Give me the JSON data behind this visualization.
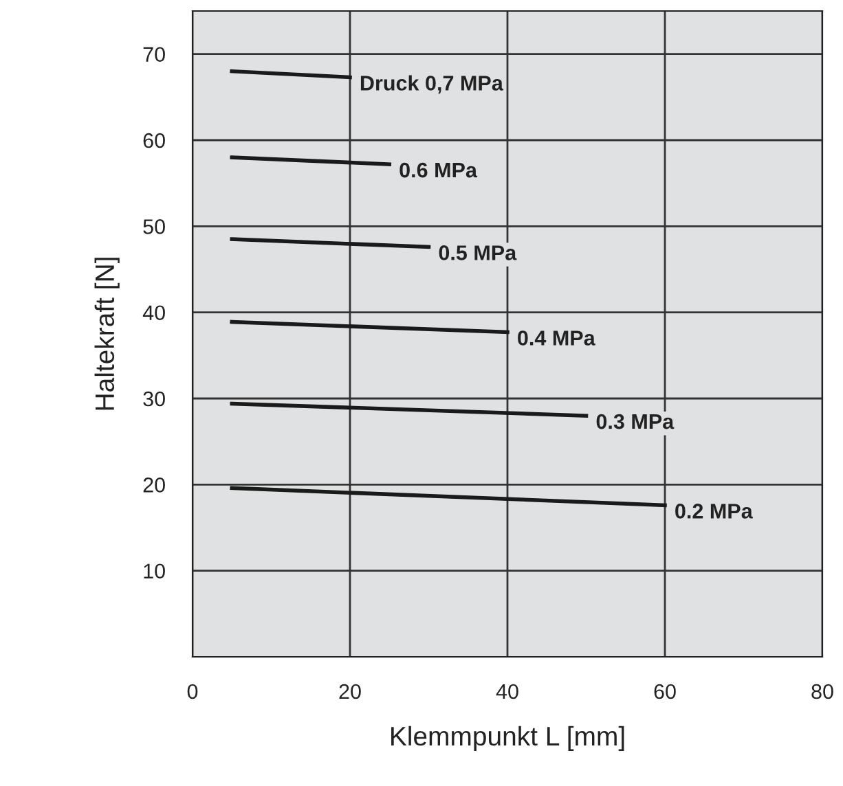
{
  "chart_data": {
    "type": "line",
    "xlabel": "Klemmpunkt L [mm]",
    "ylabel": "Haltekraft [N]",
    "xlim": [
      0,
      80
    ],
    "ylim": [
      0,
      75
    ],
    "xticks": [
      0,
      20,
      40,
      60,
      80
    ],
    "yticks": [
      10,
      20,
      30,
      40,
      50,
      60,
      70
    ],
    "grid": true,
    "marker": "none",
    "line_style": "solid",
    "series": [
      {
        "name": "Druck 0,7 MPa",
        "color": "#1a1a1a",
        "x": [
          5,
          20
        ],
        "values": [
          68,
          67.3
        ]
      },
      {
        "name": "0.6 MPa",
        "color": "#1a1a1a",
        "x": [
          5,
          25
        ],
        "values": [
          58,
          57.2
        ]
      },
      {
        "name": "0.5 MPa",
        "color": "#1a1a1a",
        "x": [
          5,
          30
        ],
        "values": [
          48.5,
          47.6
        ]
      },
      {
        "name": "0.4 MPa",
        "color": "#1a1a1a",
        "x": [
          5,
          40
        ],
        "values": [
          38.9,
          37.7
        ]
      },
      {
        "name": "0.3 MPa",
        "color": "#1a1a1a",
        "x": [
          5,
          50
        ],
        "values": [
          29.4,
          28.0
        ]
      },
      {
        "name": "0.2 MPa",
        "color": "#1a1a1a",
        "x": [
          5,
          60
        ],
        "values": [
          19.6,
          17.6
        ]
      }
    ]
  }
}
